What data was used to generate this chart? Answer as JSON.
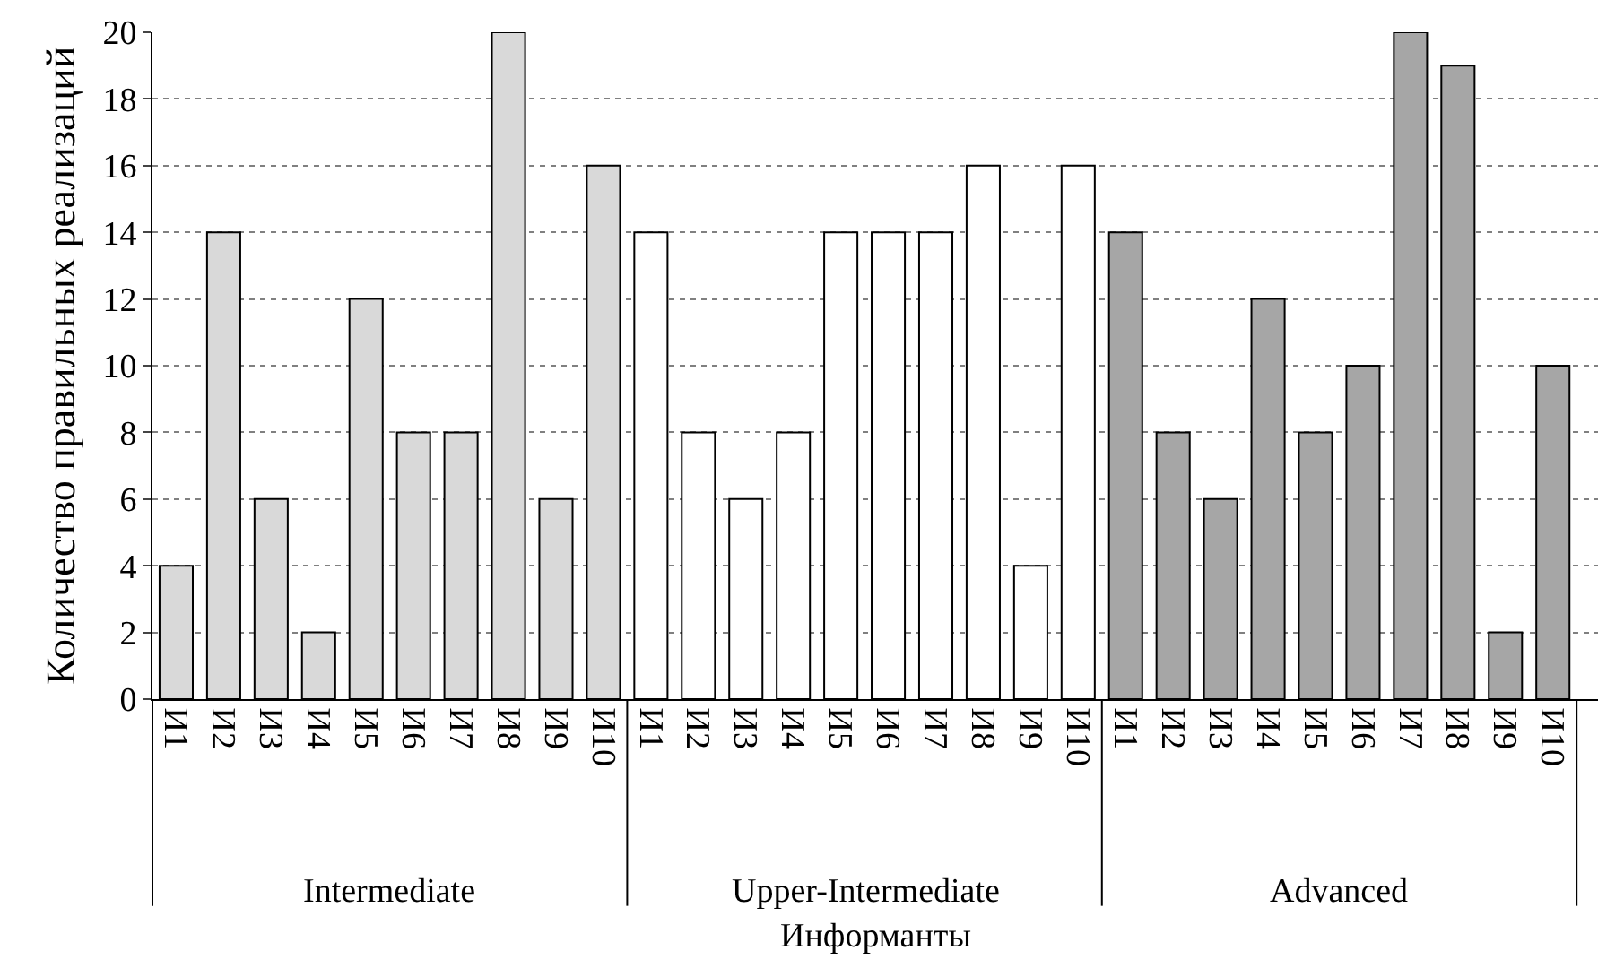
{
  "chart_data": {
    "type": "bar",
    "xlabel": "Информанты",
    "ylabel": "Количество правильных реализаций",
    "categories": [
      "И1",
      "И2",
      "И3",
      "И4",
      "И5",
      "И6",
      "И7",
      "И8",
      "И9",
      "И10",
      "И1",
      "И2",
      "И3",
      "И4",
      "И5",
      "И6",
      "И7",
      "И8",
      "И9",
      "И10",
      "И1",
      "И2",
      "И3",
      "И4",
      "И5",
      "И6",
      "И7",
      "И8",
      "И9",
      "И10"
    ],
    "series": [
      {
        "color": "#d9d9d9",
        "values": [
          4,
          14,
          6,
          2,
          12,
          8,
          8,
          20,
          6,
          16,
          null,
          null,
          null,
          null,
          null,
          null,
          null,
          null,
          null,
          null,
          null,
          null,
          null,
          null,
          null,
          null,
          null,
          null,
          null,
          null
        ]
      },
      {
        "color": "#ffffff",
        "values": [
          null,
          null,
          null,
          null,
          null,
          null,
          null,
          null,
          null,
          null,
          14,
          8,
          6,
          8,
          14,
          14,
          14,
          16,
          4,
          16,
          null,
          null,
          null,
          null,
          null,
          null,
          null,
          null,
          null,
          null
        ]
      },
      {
        "color": "#a6a6a6",
        "values": [
          null,
          null,
          null,
          null,
          null,
          null,
          null,
          null,
          null,
          null,
          null,
          null,
          null,
          null,
          null,
          null,
          null,
          null,
          null,
          null,
          14,
          8,
          6,
          12,
          8,
          10,
          20,
          19,
          2,
          10
        ]
      }
    ],
    "annotations": [
      "Intermediate",
      "Upper-Intermediate",
      "Advanced"
    ],
    "ylim": [
      0,
      20
    ],
    "yticks": [
      0,
      2,
      4,
      6,
      8,
      10,
      12,
      14,
      16,
      18,
      20
    ],
    "grid": "y"
  }
}
